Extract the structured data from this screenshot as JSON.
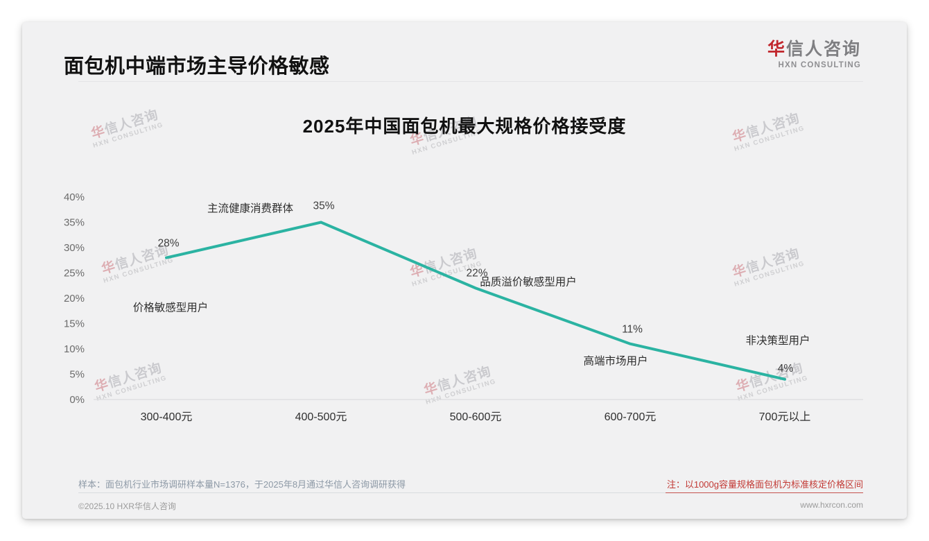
{
  "slide": {
    "title": "面包机中端市场主导价格敏感",
    "logo": {
      "cn_first": "华",
      "cn_rest": "信人咨询",
      "en": "HXN CONSULTING"
    },
    "watermark": {
      "line1": "华信人咨询",
      "line2": "HXN CONSULTING"
    },
    "note_left": "样本：面包机行业市场调研样本量N=1376，于2025年8月通过华信人咨询调研获得",
    "note_right": "注：以1000g容量规格面包机为标准核定价格区间",
    "footer_left": "©2025.10 HXR华信人咨询",
    "footer_right": "www.hxrcon.com"
  },
  "colors": {
    "accent_red": "#c1272d",
    "note_red": "#c23934",
    "card_background": "#f1f1f2"
  },
  "chart_data": {
    "type": "line",
    "title": "2025年中国面包机最大规格价格接受度",
    "categories": [
      "300-400元",
      "400-500元",
      "500-600元",
      "600-700元",
      "700元以上"
    ],
    "values": [
      28,
      35,
      22,
      11,
      4
    ],
    "value_labels": [
      "28%",
      "35%",
      "22%",
      "11%",
      "4%"
    ],
    "point_annotations": [
      "价格敏感型用户",
      "主流健康消费群体",
      "品质溢价敏感型用户",
      "高端市场用户",
      "非决策型用户"
    ],
    "xlabel": "",
    "ylabel": "",
    "ylim": [
      0,
      40
    ],
    "ytick_step": 5,
    "ytick_suffix": "%",
    "grid": "baseline-only",
    "legend": "none",
    "line_color": "#2bb3a2"
  }
}
